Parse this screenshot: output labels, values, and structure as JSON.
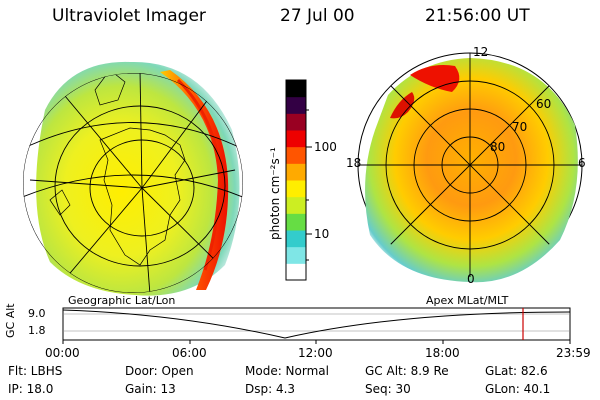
{
  "header": {
    "title": "Ultraviolet Imager",
    "date": "27 Jul 00",
    "time": "21:56:00 UT"
  },
  "colorbar": {
    "unit_label": "photon cm⁻²s⁻¹",
    "ticks": [
      "100",
      "10"
    ],
    "colors": [
      "#ffffff",
      "#7fe6e6",
      "#33cccc",
      "#66dd44",
      "#ccee22",
      "#ffee00",
      "#ffaa00",
      "#ff5500",
      "#ee0000",
      "#990022",
      "#330044",
      "#000000"
    ]
  },
  "geo_panel": {
    "label": "Geographic Lat/Lon"
  },
  "apex_panel": {
    "label": "Apex MLat/MLT",
    "lat_labels": [
      "60",
      "70",
      "80"
    ],
    "mlt_labels": {
      "top": "12",
      "left": "18",
      "right": "6",
      "bottom": "0"
    }
  },
  "altitude_plot": {
    "ylabel": "GC Alt",
    "yticks": [
      "9.0",
      "1.8"
    ],
    "xticks": [
      "00:00",
      "06:00",
      "12:00",
      "18:00",
      "23:59"
    ],
    "current_time_marker": "21:56"
  },
  "info": {
    "filter": "Flt: LBHS",
    "ip": "IP: 18.0",
    "door": "Door: Open",
    "gain": "Gain: 13",
    "mode": "Mode: Normal",
    "dsp": "Dsp:     4.3",
    "gc_alt": "GC Alt: 8.9 Re",
    "seq": "Seq: 30",
    "glat": "GLat:  82.6",
    "glon": "GLon:  40.1"
  }
}
